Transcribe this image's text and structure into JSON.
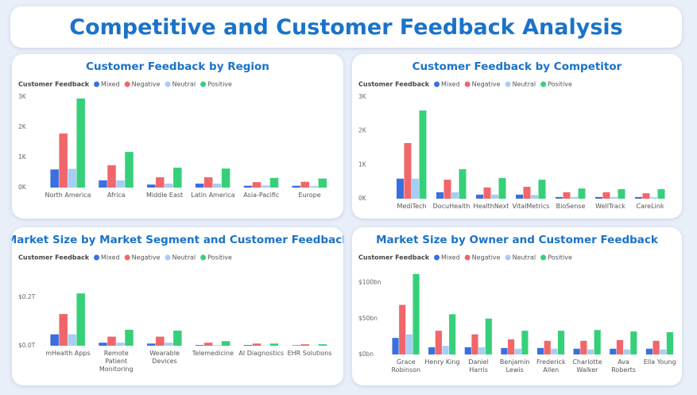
{
  "title": "Competitive and Customer Feedback Analysis",
  "chart_data": [
    {
      "type": "bar",
      "title": "Customer Feedback by Region",
      "legend_title": "Customer Feedback",
      "categories": [
        "North America",
        "Africa",
        "Middle East",
        "Latin America",
        "Asia-Pacific",
        "Europe"
      ],
      "series": [
        {
          "name": "Mixed",
          "color": "#3b6fe0",
          "values": [
            600,
            240,
            100,
            130,
            60,
            60
          ]
        },
        {
          "name": "Negative",
          "color": "#f0666a",
          "values": [
            1790,
            740,
            340,
            340,
            180,
            190
          ]
        },
        {
          "name": "Neutral",
          "color": "#a8cdf5",
          "values": [
            620,
            240,
            130,
            130,
            70,
            50
          ]
        },
        {
          "name": "Positive",
          "color": "#36d07a",
          "values": [
            2950,
            1180,
            660,
            630,
            320,
            300
          ]
        }
      ],
      "ylim": [
        0,
        3000
      ],
      "yticks": [
        {
          "value": 0,
          "label": "0K"
        },
        {
          "value": 1000,
          "label": "1K"
        },
        {
          "value": 2000,
          "label": "2K"
        },
        {
          "value": 3000,
          "label": "3K"
        }
      ],
      "grid": false
    },
    {
      "type": "bar",
      "title": "Customer Feedback by Competitor",
      "legend_title": "Customer Feedback",
      "categories": [
        "MediTech",
        "DocuHealth",
        "HealthNext",
        "VitalMetrics",
        "BioSense",
        "WellTrack",
        "CareLink"
      ],
      "series": [
        {
          "name": "Mixed",
          "color": "#3b6fe0",
          "values": [
            590,
            190,
            120,
            120,
            50,
            50,
            50
          ]
        },
        {
          "name": "Negative",
          "color": "#f0666a",
          "values": [
            1640,
            560,
            330,
            350,
            190,
            190,
            160
          ]
        },
        {
          "name": "Neutral",
          "color": "#a8cdf5",
          "values": [
            590,
            190,
            120,
            110,
            50,
            50,
            40
          ]
        },
        {
          "name": "Positive",
          "color": "#36d07a",
          "values": [
            2600,
            870,
            610,
            560,
            300,
            280,
            280
          ]
        }
      ],
      "ylim": [
        0,
        3000
      ],
      "yticks": [
        {
          "value": 0,
          "label": "0K"
        },
        {
          "value": 1000,
          "label": "1K"
        },
        {
          "value": 2000,
          "label": "2K"
        },
        {
          "value": 3000,
          "label": "3K"
        }
      ],
      "grid": false
    },
    {
      "type": "bar",
      "title": "Market Size by Market Segment and Customer Feedback",
      "legend_title": "Customer Feedback",
      "categories": [
        "mHealth Apps",
        "Remote Patient Monitoring",
        "Wearable Devices",
        "Telemedicine",
        "AI Diagnostics",
        "EHR Solutions"
      ],
      "series": [
        {
          "name": "Mixed",
          "color": "#3b6fe0",
          "values": [
            0.047,
            0.0125,
            0.009,
            0.003,
            0.003,
            0.002
          ]
        },
        {
          "name": "Negative",
          "color": "#f0666a",
          "values": [
            0.131,
            0.0375,
            0.0375,
            0.0125,
            0.009,
            0.006
          ]
        },
        {
          "name": "Neutral",
          "color": "#a8cdf5",
          "values": [
            0.047,
            0.0125,
            0.0125,
            0.003,
            0.001,
            0.001
          ]
        },
        {
          "name": "Positive",
          "color": "#36d07a",
          "values": [
            0.216,
            0.066,
            0.0625,
            0.019,
            0.009,
            0.006
          ]
        }
      ],
      "ylim": [
        0,
        0.22
      ],
      "yticks": [
        {
          "value": 0,
          "label": "$0.0T"
        },
        {
          "value": 0.2,
          "label": "$0.2T"
        }
      ],
      "grid": false
    },
    {
      "type": "bar",
      "title": "Market Size by Owner and Customer Feedback",
      "legend_title": "Customer Feedback",
      "categories": [
        "Grace Robinson",
        "Henry King",
        "Daniel Harris",
        "Benjamin Lewis",
        "Frederick Allen",
        "Charlotte Walker",
        "Ava Roberts",
        "Ella Young"
      ],
      "series": [
        {
          "name": "Mixed",
          "color": "#3b6fe0",
          "values": [
            23,
            10,
            10,
            9,
            9,
            8,
            8,
            8
          ]
        },
        {
          "name": "Negative",
          "color": "#f0666a",
          "values": [
            69,
            33,
            28,
            21,
            19,
            19,
            20,
            19
          ]
        },
        {
          "name": "Neutral",
          "color": "#a8cdf5",
          "values": [
            28,
            12,
            10,
            8,
            8,
            7,
            7,
            7
          ]
        },
        {
          "name": "Positive",
          "color": "#36d07a",
          "values": [
            112,
            56,
            50,
            33,
            33,
            34,
            32,
            31
          ]
        }
      ],
      "ylim": [
        0,
        115
      ],
      "yticks": [
        {
          "value": 0,
          "label": "$0bn"
        },
        {
          "value": 50,
          "label": "$50bn"
        },
        {
          "value": 100,
          "label": "$100bn"
        }
      ],
      "grid": false
    }
  ]
}
